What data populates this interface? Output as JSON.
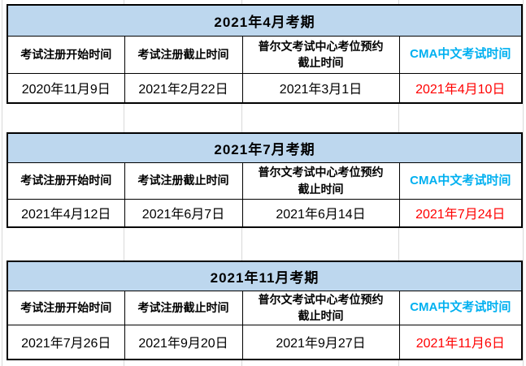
{
  "colors": {
    "title-bg": "#bdd7ee",
    "cma-header-text": "#00b0f0",
    "exam-date-text": "#ff0000",
    "table-border": "#000000",
    "gridline": "#d9d9d9",
    "text": "#000000"
  },
  "columns": [
    "考试注册开始时间",
    "考试注册截止时间",
    "普尔文考试中心考位预约\n截止时间",
    "CMA中文考试时间"
  ],
  "tables": [
    {
      "title": "2021年4月考期",
      "values": [
        "2020年11月9日",
        "2021年2月22日",
        "2021年3月1日",
        "2021年4月10日"
      ]
    },
    {
      "title": "2021年7月考期",
      "values": [
        "2021年4月12日",
        "2021年6月7日",
        "2021年6月14日",
        "2021年7月24日"
      ]
    },
    {
      "title": "2021年11月考期",
      "values": [
        "2021年7月26日",
        "2021年9月20日",
        "2021年9月27日",
        "2021年11月6日"
      ]
    }
  ]
}
